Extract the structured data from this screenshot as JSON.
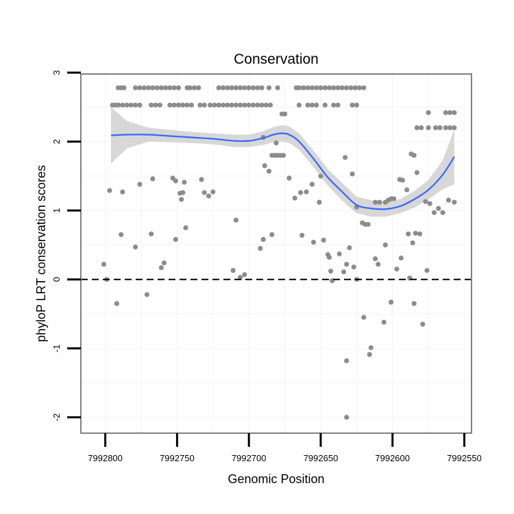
{
  "chart_data": {
    "type": "scatter",
    "title": "Conservation",
    "xlabel": "Genomic Position",
    "ylabel": "phyloP LRT conservation scores",
    "x_reversed": true,
    "xlim": [
      7992817,
      7992545
    ],
    "ylim": [
      -2.23,
      2.98
    ],
    "xticks": [
      7992800,
      7992750,
      7992700,
      7992650,
      7992600,
      7992550
    ],
    "xtick_labels": [
      "7992800",
      "7992750",
      "7992700",
      "7992650",
      "7992600",
      "7992550"
    ],
    "yticks": [
      -2,
      -1,
      0,
      1,
      2,
      3
    ],
    "ytick_labels": [
      "-2",
      "-1",
      "0",
      "1",
      "2",
      "3"
    ],
    "reference_line": {
      "y": 0,
      "style": "dashed"
    },
    "colors": {
      "points": "#8c8c8c",
      "smooth": "#3366ff",
      "ribbon": "#d3d3d3",
      "grid": "#f2f2f2",
      "border": "#7f7f7f",
      "refline": "#000000"
    },
    "points": [
      {
        "x": 7992791,
        "y": 2.78
      },
      {
        "x": 7992789,
        "y": 2.78
      },
      {
        "x": 7992787,
        "y": 2.78
      },
      {
        "x": 7992779,
        "y": 2.78
      },
      {
        "x": 7992776,
        "y": 2.78
      },
      {
        "x": 7992773,
        "y": 2.78
      },
      {
        "x": 7992770,
        "y": 2.78
      },
      {
        "x": 7992767,
        "y": 2.78
      },
      {
        "x": 7992764,
        "y": 2.78
      },
      {
        "x": 7992761,
        "y": 2.78
      },
      {
        "x": 7992758,
        "y": 2.78
      },
      {
        "x": 7992755,
        "y": 2.78
      },
      {
        "x": 7992752,
        "y": 2.78
      },
      {
        "x": 7992749,
        "y": 2.78
      },
      {
        "x": 7992743,
        "y": 2.78
      },
      {
        "x": 7992741,
        "y": 2.78
      },
      {
        "x": 7992738,
        "y": 2.78
      },
      {
        "x": 7992735,
        "y": 2.78
      },
      {
        "x": 7992721,
        "y": 2.78
      },
      {
        "x": 7992718,
        "y": 2.78
      },
      {
        "x": 7992715,
        "y": 2.78
      },
      {
        "x": 7992712,
        "y": 2.78
      },
      {
        "x": 7992709,
        "y": 2.78
      },
      {
        "x": 7992706,
        "y": 2.78
      },
      {
        "x": 7992703,
        "y": 2.78
      },
      {
        "x": 7992700,
        "y": 2.78
      },
      {
        "x": 7992697,
        "y": 2.78
      },
      {
        "x": 7992694,
        "y": 2.78
      },
      {
        "x": 7992691,
        "y": 2.78
      },
      {
        "x": 7992686,
        "y": 2.78
      },
      {
        "x": 7992680,
        "y": 2.78
      },
      {
        "x": 7992667,
        "y": 2.78
      },
      {
        "x": 7992665,
        "y": 2.78
      },
      {
        "x": 7992662,
        "y": 2.78
      },
      {
        "x": 7992659,
        "y": 2.78
      },
      {
        "x": 7992656,
        "y": 2.78
      },
      {
        "x": 7992653,
        "y": 2.78
      },
      {
        "x": 7992650,
        "y": 2.78
      },
      {
        "x": 7992647,
        "y": 2.78
      },
      {
        "x": 7992644,
        "y": 2.78
      },
      {
        "x": 7992641,
        "y": 2.78
      },
      {
        "x": 7992638,
        "y": 2.78
      },
      {
        "x": 7992635,
        "y": 2.78
      },
      {
        "x": 7992632,
        "y": 2.78
      },
      {
        "x": 7992629,
        "y": 2.78
      },
      {
        "x": 7992626,
        "y": 2.78
      },
      {
        "x": 7992623,
        "y": 2.78
      },
      {
        "x": 7992620,
        "y": 2.78
      },
      {
        "x": 7992795,
        "y": 2.53
      },
      {
        "x": 7992793,
        "y": 2.53
      },
      {
        "x": 7992791,
        "y": 2.53
      },
      {
        "x": 7992788,
        "y": 2.53
      },
      {
        "x": 7992785,
        "y": 2.53
      },
      {
        "x": 7992782,
        "y": 2.53
      },
      {
        "x": 7992779,
        "y": 2.53
      },
      {
        "x": 7992776,
        "y": 2.53
      },
      {
        "x": 7992768,
        "y": 2.53
      },
      {
        "x": 7992765,
        "y": 2.53
      },
      {
        "x": 7992762,
        "y": 2.53
      },
      {
        "x": 7992755,
        "y": 2.53
      },
      {
        "x": 7992752,
        "y": 2.53
      },
      {
        "x": 7992749,
        "y": 2.53
      },
      {
        "x": 7992746,
        "y": 2.53
      },
      {
        "x": 7992743,
        "y": 2.53
      },
      {
        "x": 7992740,
        "y": 2.53
      },
      {
        "x": 7992734,
        "y": 2.53
      },
      {
        "x": 7992731,
        "y": 2.53
      },
      {
        "x": 7992727,
        "y": 2.53
      },
      {
        "x": 7992724,
        "y": 2.53
      },
      {
        "x": 7992721,
        "y": 2.53
      },
      {
        "x": 7992718,
        "y": 2.53
      },
      {
        "x": 7992715,
        "y": 2.53
      },
      {
        "x": 7992712,
        "y": 2.53
      },
      {
        "x": 7992709,
        "y": 2.53
      },
      {
        "x": 7992706,
        "y": 2.53
      },
      {
        "x": 7992703,
        "y": 2.53
      },
      {
        "x": 7992700,
        "y": 2.53
      },
      {
        "x": 7992697,
        "y": 2.53
      },
      {
        "x": 7992694,
        "y": 2.53
      },
      {
        "x": 7992691,
        "y": 2.53
      },
      {
        "x": 7992688,
        "y": 2.53
      },
      {
        "x": 7992685,
        "y": 2.53
      },
      {
        "x": 7992665,
        "y": 2.53
      },
      {
        "x": 7992659,
        "y": 2.53
      },
      {
        "x": 7992656,
        "y": 2.53
      },
      {
        "x": 7992653,
        "y": 2.53
      },
      {
        "x": 7992647,
        "y": 2.53
      },
      {
        "x": 7992641,
        "y": 2.53
      },
      {
        "x": 7992638,
        "y": 2.53
      },
      {
        "x": 7992628,
        "y": 2.53
      },
      {
        "x": 7992625,
        "y": 2.53
      },
      {
        "x": 7992677,
        "y": 2.4
      },
      {
        "x": 7992675,
        "y": 2.4
      },
      {
        "x": 7992575,
        "y": 2.42
      },
      {
        "x": 7992563,
        "y": 2.42
      },
      {
        "x": 7992560,
        "y": 2.42
      },
      {
        "x": 7992557,
        "y": 2.42
      },
      {
        "x": 7992583,
        "y": 2.2
      },
      {
        "x": 7992580,
        "y": 2.2
      },
      {
        "x": 7992575,
        "y": 2.2
      },
      {
        "x": 7992570,
        "y": 2.2
      },
      {
        "x": 7992567,
        "y": 2.2
      },
      {
        "x": 7992563,
        "y": 2.2
      },
      {
        "x": 7992560,
        "y": 2.2
      },
      {
        "x": 7992557,
        "y": 2.2
      },
      {
        "x": 7992690,
        "y": 2.06
      },
      {
        "x": 7992681,
        "y": 1.98
      },
      {
        "x": 7992689,
        "y": 1.65
      },
      {
        "x": 7992686,
        "y": 1.57
      },
      {
        "x": 7992684,
        "y": 1.8
      },
      {
        "x": 7992682,
        "y": 1.8
      },
      {
        "x": 7992680,
        "y": 1.8
      },
      {
        "x": 7992678,
        "y": 1.8
      },
      {
        "x": 7992676,
        "y": 1.8
      },
      {
        "x": 7992672,
        "y": 1.47
      },
      {
        "x": 7992668,
        "y": 1.18
      },
      {
        "x": 7992664,
        "y": 1.26
      },
      {
        "x": 7992660,
        "y": 1.27
      },
      {
        "x": 7992656,
        "y": 1.38
      },
      {
        "x": 7992651,
        "y": 1.12
      },
      {
        "x": 7992650,
        "y": 1.5
      },
      {
        "x": 7992633,
        "y": 1.77
      },
      {
        "x": 7992628,
        "y": 1.53
      },
      {
        "x": 7992625,
        "y": 1.05
      },
      {
        "x": 7992621,
        "y": 0.82
      },
      {
        "x": 7992619,
        "y": 0.8
      },
      {
        "x": 7992617,
        "y": 0.8
      },
      {
        "x": 7992612,
        "y": 1.12
      },
      {
        "x": 7992609,
        "y": 1.12
      },
      {
        "x": 7992605,
        "y": 1.12
      },
      {
        "x": 7992603,
        "y": 1.15
      },
      {
        "x": 7992601,
        "y": 1.17
      },
      {
        "x": 7992599,
        "y": 1.17
      },
      {
        "x": 7992595,
        "y": 1.45
      },
      {
        "x": 7992593,
        "y": 1.44
      },
      {
        "x": 7992590,
        "y": 1.3
      },
      {
        "x": 7992587,
        "y": 1.82
      },
      {
        "x": 7992585,
        "y": 1.8
      },
      {
        "x": 7992583,
        "y": 1.55
      },
      {
        "x": 7992577,
        "y": 1.13
      },
      {
        "x": 7992574,
        "y": 1.1
      },
      {
        "x": 7992571,
        "y": 0.97
      },
      {
        "x": 7992568,
        "y": 1.03
      },
      {
        "x": 7992565,
        "y": 0.97
      },
      {
        "x": 7992561,
        "y": 1.15
      },
      {
        "x": 7992557,
        "y": 1.12
      },
      {
        "x": 7992801,
        "y": 0.22
      },
      {
        "x": 7992799,
        "y": 0.0
      },
      {
        "x": 7992797,
        "y": 1.29
      },
      {
        "x": 7992792,
        "y": -0.35
      },
      {
        "x": 7992789,
        "y": 0.65
      },
      {
        "x": 7992788,
        "y": 1.27
      },
      {
        "x": 7992779,
        "y": 0.47
      },
      {
        "x": 7992776,
        "y": 1.38
      },
      {
        "x": 7992771,
        "y": -0.22
      },
      {
        "x": 7992768,
        "y": 0.66
      },
      {
        "x": 7992767,
        "y": 1.46
      },
      {
        "x": 7992761,
        "y": 0.17
      },
      {
        "x": 7992759,
        "y": 0.24
      },
      {
        "x": 7992753,
        "y": 1.47
      },
      {
        "x": 7992751,
        "y": 1.43
      },
      {
        "x": 7992751,
        "y": 0.58
      },
      {
        "x": 7992748,
        "y": 1.25
      },
      {
        "x": 7992747,
        "y": 1.16
      },
      {
        "x": 7992746,
        "y": 1.26
      },
      {
        "x": 7992745,
        "y": 1.41
      },
      {
        "x": 7992744,
        "y": 0.75
      },
      {
        "x": 7992733,
        "y": 1.45
      },
      {
        "x": 7992731,
        "y": 1.26
      },
      {
        "x": 7992728,
        "y": 1.21
      },
      {
        "x": 7992725,
        "y": 1.27
      },
      {
        "x": 7992711,
        "y": 0.13
      },
      {
        "x": 7992709,
        "y": 0.86
      },
      {
        "x": 7992706,
        "y": 0.03
      },
      {
        "x": 7992703,
        "y": 0.07
      },
      {
        "x": 7992692,
        "y": 0.45
      },
      {
        "x": 7992690,
        "y": 0.58
      },
      {
        "x": 7992684,
        "y": 0.65
      },
      {
        "x": 7992663,
        "y": 0.64
      },
      {
        "x": 7992655,
        "y": 0.54
      },
      {
        "x": 7992648,
        "y": 0.57
      },
      {
        "x": 7992645,
        "y": 0.36
      },
      {
        "x": 7992644,
        "y": 0.32
      },
      {
        "x": 7992643,
        "y": 0.12
      },
      {
        "x": 7992642,
        "y": -0.02
      },
      {
        "x": 7992637,
        "y": 0.37
      },
      {
        "x": 7992634,
        "y": 0.11
      },
      {
        "x": 7992632,
        "y": 0.22
      },
      {
        "x": 7992630,
        "y": 0.46
      },
      {
        "x": 7992627,
        "y": 0.18
      },
      {
        "x": 7992625,
        "y": 0.0
      },
      {
        "x": 7992612,
        "y": 0.3
      },
      {
        "x": 7992610,
        "y": 0.22
      },
      {
        "x": 7992605,
        "y": 0.5
      },
      {
        "x": 7992601,
        "y": -0.33
      },
      {
        "x": 7992597,
        "y": 0.15
      },
      {
        "x": 7992594,
        "y": 0.31
      },
      {
        "x": 7992589,
        "y": 0.66
      },
      {
        "x": 7992588,
        "y": 0.02
      },
      {
        "x": 7992586,
        "y": 0.53
      },
      {
        "x": 7992584,
        "y": 0.67
      },
      {
        "x": 7992581,
        "y": 0.66
      },
      {
        "x": 7992576,
        "y": 0.13
      },
      {
        "x": 7992620,
        "y": -0.55
      },
      {
        "x": 7992606,
        "y": -0.62
      },
      {
        "x": 7992585,
        "y": -0.35
      },
      {
        "x": 7992579,
        "y": -0.65
      },
      {
        "x": 7992615,
        "y": -0.99
      },
      {
        "x": 7992616,
        "y": -1.09
      },
      {
        "x": 7992632,
        "y": -1.18
      },
      {
        "x": 7992632,
        "y": -2.0
      }
    ],
    "smooth_line": {
      "x": [
        7992796,
        7992785,
        7992770,
        7992755,
        7992740,
        7992725,
        7992710,
        7992700,
        7992690,
        7992683,
        7992677,
        7992672,
        7992665,
        7992655,
        7992645,
        7992635,
        7992625,
        7992615,
        7992605,
        7992595,
        7992585,
        7992575,
        7992565,
        7992557
      ],
      "y": [
        2.09,
        2.1,
        2.1,
        2.08,
        2.06,
        2.04,
        2.01,
        2.01,
        2.05,
        2.1,
        2.12,
        2.1,
        2.0,
        1.75,
        1.48,
        1.27,
        1.08,
        1.03,
        1.02,
        1.06,
        1.16,
        1.3,
        1.52,
        1.78
      ],
      "se_upper": [
        2.5,
        2.3,
        2.2,
        2.17,
        2.14,
        2.12,
        2.1,
        2.1,
        2.15,
        2.21,
        2.24,
        2.22,
        2.12,
        1.87,
        1.6,
        1.4,
        1.2,
        1.15,
        1.13,
        1.16,
        1.28,
        1.44,
        1.73,
        2.18
      ],
      "se_lower": [
        1.68,
        1.9,
        2.0,
        1.99,
        1.98,
        1.96,
        1.92,
        1.92,
        1.95,
        1.99,
        2.0,
        1.98,
        1.88,
        1.63,
        1.36,
        1.14,
        0.96,
        0.91,
        0.91,
        0.96,
        1.04,
        1.16,
        1.31,
        1.38
      ]
    }
  }
}
